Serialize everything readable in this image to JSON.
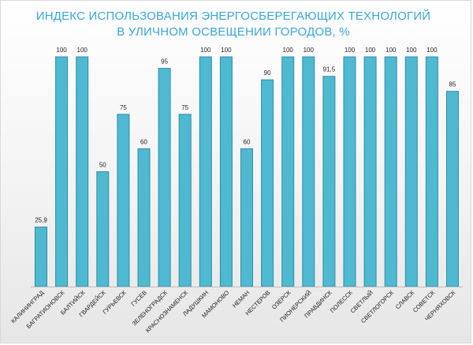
{
  "chart_data": {
    "type": "bar",
    "title_lines": [
      "ИНДЕКС ИСПОЛЬЗОВАНИЯ ЭНЕРГОСБЕРЕГАЮЩИХ ТЕХНОЛОГИЙ",
      "В УЛИЧНОМ ОСВЕЩЕНИИ ГОРОДОВ, %"
    ],
    "categories": [
      "КАЛИНИНГРАД",
      "БАГРАТИОНОВСК",
      "БАЛТИЙСК",
      "ГВАРДЕЙСК",
      "ГУРЬЕВСК",
      "ГУСЕВ",
      "ЗЕЛЕНОГРАДСК",
      "КРАСНОЗНАМЕНСК",
      "ЛАДУШКИН",
      "МАМОНОВО",
      "НЕМАН",
      "НЕСТЕРОВ",
      "ОЗЕРСК",
      "ПИОНЕРСКИЙ",
      "ПРАВДИНСК",
      "ПОЛЕССК",
      "СВЕТЛЫЙ",
      "СВЕТЛОГОРСК",
      "СЛАВСК",
      "СОВЕТСК",
      "ЧЕРНЯХОВСК"
    ],
    "values": [
      25.9,
      100,
      100,
      50,
      75,
      60,
      95,
      75,
      100,
      100,
      60,
      90,
      100,
      100,
      91.5,
      100,
      100,
      100,
      100,
      100,
      85
    ],
    "value_labels": [
      "25,9",
      "100",
      "100",
      "50",
      "75",
      "60",
      "95",
      "75",
      "100",
      "100",
      "60",
      "90",
      "100",
      "100",
      "91,5",
      "100",
      "100",
      "100",
      "100",
      "100",
      "85"
    ],
    "ylim": [
      0,
      100
    ],
    "grid": false,
    "legend": "none",
    "colors": {
      "bar_fill": "#4fb9d1",
      "bar_stroke": "#2f8ea6",
      "title": "#3aa4dc"
    }
  }
}
